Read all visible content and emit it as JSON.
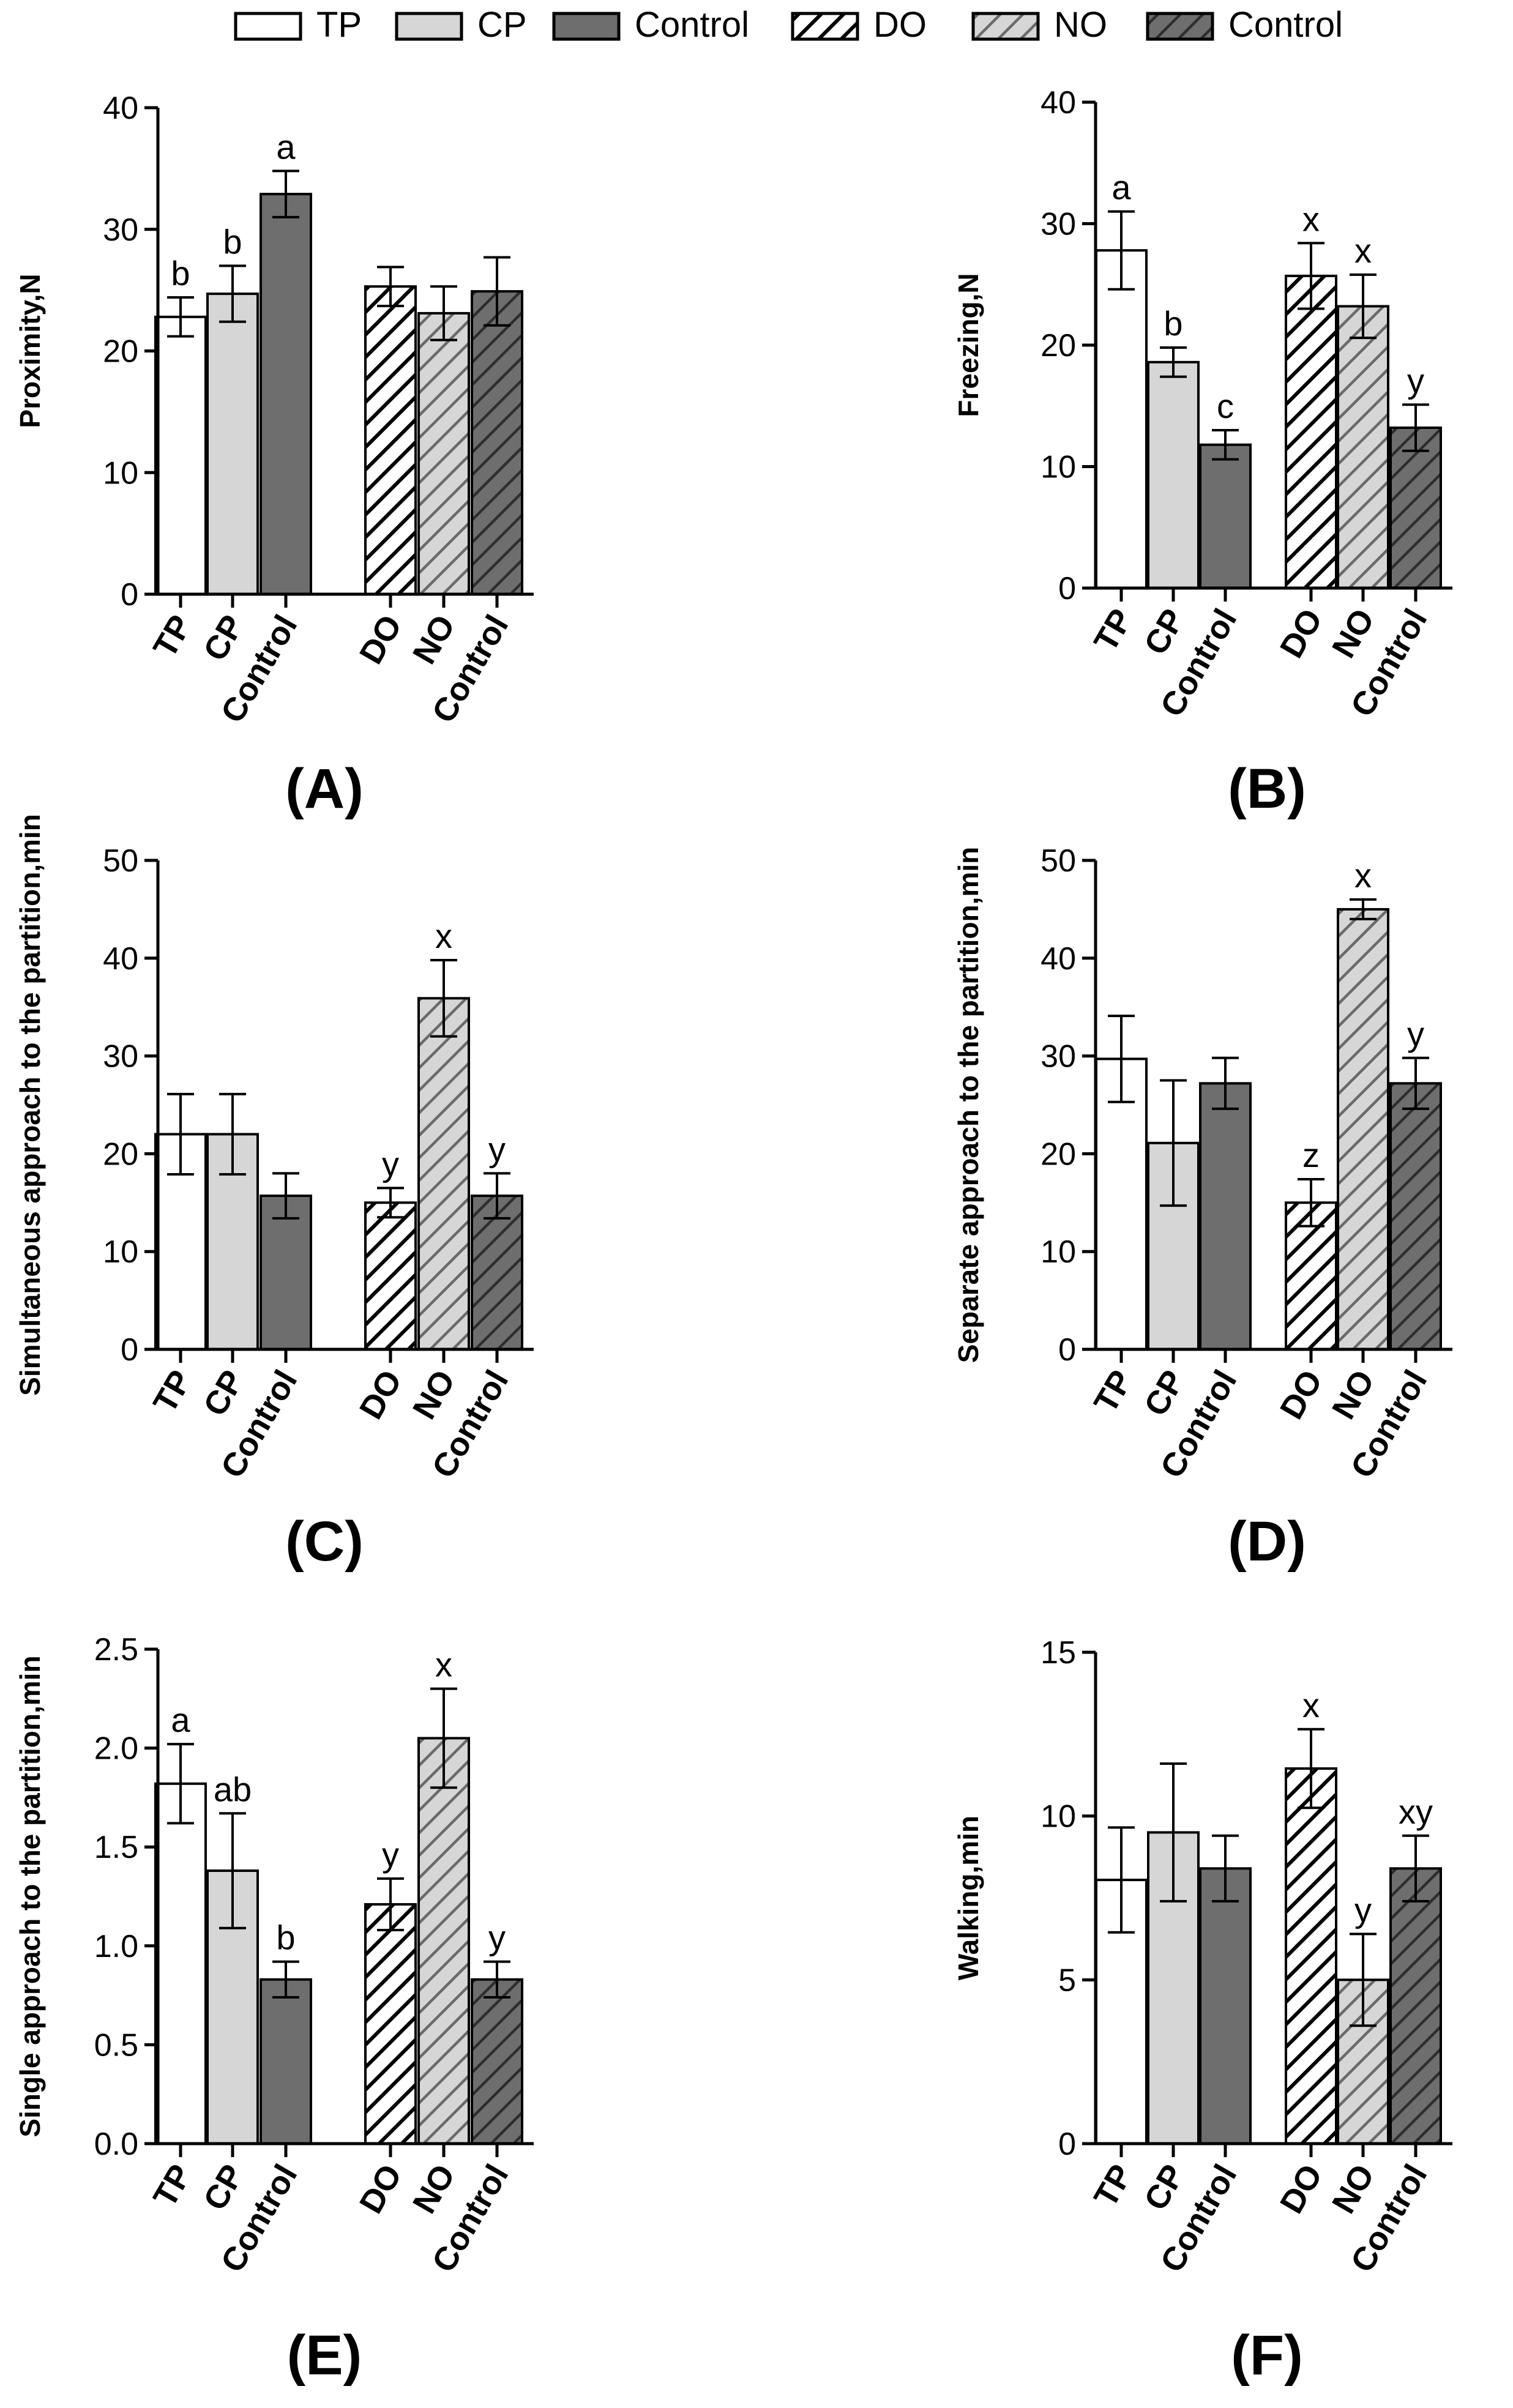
{
  "colors": {
    "tp": "#ffffff",
    "cp": "#d6d6d6",
    "control": "#6e6e6e",
    "stroke": "#000000"
  },
  "legend": {
    "items": [
      {
        "label": "TP",
        "fill": "tp",
        "hatch": false
      },
      {
        "label": "CP",
        "fill": "cp",
        "hatch": false
      },
      {
        "label": "Control",
        "fill": "control",
        "hatch": false
      },
      {
        "label": "DO",
        "fill": "tp",
        "hatch": true
      },
      {
        "label": "NO",
        "fill": "cp",
        "hatch": true
      },
      {
        "label": "Control",
        "fill": "control",
        "hatch": true
      }
    ]
  },
  "chart_data": [
    {
      "type": "bar",
      "panel_label": "(A)",
      "ylabel": "Proximity,N",
      "ylim": [
        0,
        40
      ],
      "yticks": [
        "0",
        "10",
        "20",
        "30",
        "40"
      ],
      "categories": [
        "TP",
        "CP",
        "Control",
        "DO",
        "NO",
        "Control"
      ],
      "values": [
        22.8,
        24.7,
        32.9,
        25.3,
        23.1,
        24.9
      ],
      "errors": [
        1.6,
        2.3,
        1.9,
        1.6,
        2.2,
        2.8
      ],
      "letters": [
        "b",
        "b",
        "a",
        "",
        "",
        ""
      ]
    },
    {
      "type": "bar",
      "panel_label": "(B)",
      "ylabel": "Freezing,N",
      "ylim": [
        0,
        40
      ],
      "yticks": [
        "0",
        "10",
        "20",
        "30",
        "40"
      ],
      "categories": [
        "TP",
        "CP",
        "Control",
        "DO",
        "NO",
        "Control"
      ],
      "values": [
        27.8,
        18.6,
        11.8,
        25.7,
        23.2,
        13.2
      ],
      "errors": [
        3.2,
        1.2,
        1.2,
        2.7,
        2.6,
        1.9
      ],
      "letters": [
        "a",
        "b",
        "c",
        "x",
        "x",
        "y"
      ]
    },
    {
      "type": "bar",
      "panel_label": "(C)",
      "ylabel": "Simultaneous approach to the partition,min",
      "ylim": [
        0,
        50
      ],
      "yticks": [
        "0",
        "10",
        "20",
        "30",
        "40",
        "50"
      ],
      "categories": [
        "TP",
        "CP",
        "Control",
        "DO",
        "NO",
        "Control"
      ],
      "values": [
        22.0,
        22.0,
        15.7,
        15.0,
        35.9,
        15.7
      ],
      "errors": [
        4.1,
        4.1,
        2.3,
        1.5,
        3.9,
        2.3
      ],
      "letters": [
        "",
        "",
        "",
        "y",
        "x",
        "y"
      ]
    },
    {
      "type": "bar",
      "panel_label": "(D)",
      "ylabel": "Separate approach to the partition,min",
      "ylim": [
        0,
        50
      ],
      "yticks": [
        "0",
        "10",
        "20",
        "30",
        "40",
        "50"
      ],
      "categories": [
        "TP",
        "CP",
        "Control",
        "DO",
        "NO",
        "Control"
      ],
      "values": [
        29.7,
        21.1,
        27.2,
        15.0,
        45.0,
        27.2
      ],
      "errors": [
        4.4,
        6.4,
        2.6,
        2.4,
        1.0,
        2.6
      ],
      "letters": [
        "",
        "",
        "",
        "z",
        "x",
        "y"
      ]
    },
    {
      "type": "bar",
      "panel_label": "(E)",
      "ylabel": "Single approach to the partition,min",
      "ylim": [
        0,
        2.5
      ],
      "yticks": [
        "0.0",
        "0.5",
        "1.0",
        "1.5",
        "2.0",
        "2.5"
      ],
      "categories": [
        "TP",
        "CP",
        "Control",
        "DO",
        "NO",
        "Control"
      ],
      "values": [
        1.82,
        1.38,
        0.83,
        1.21,
        2.05,
        0.83
      ],
      "errors": [
        0.2,
        0.29,
        0.09,
        0.13,
        0.25,
        0.09
      ],
      "letters": [
        "a",
        "ab",
        "b",
        "y",
        "x",
        "y"
      ]
    },
    {
      "type": "bar",
      "panel_label": "(F)",
      "ylabel": "Walking,min",
      "ylim": [
        0,
        15
      ],
      "yticks": [
        "0",
        "5",
        "10",
        "15"
      ],
      "categories": [
        "TP",
        "CP",
        "Control",
        "DO",
        "NO",
        "Control"
      ],
      "values": [
        8.05,
        9.5,
        8.4,
        11.45,
        5.0,
        8.4
      ],
      "errors": [
        1.6,
        2.1,
        1.0,
        1.2,
        1.4,
        1.0
      ],
      "letters": [
        "",
        "",
        "",
        "x",
        "y",
        "xy"
      ]
    }
  ]
}
